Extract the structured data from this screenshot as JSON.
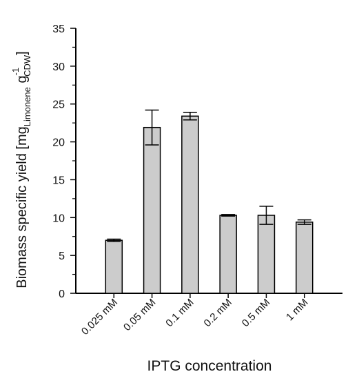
{
  "chart_data": {
    "type": "bar",
    "xlabel": "IPTG concentration",
    "ylabel": {
      "main": "Biomass specific yield [mg",
      "sub1": "Limonene",
      "mid": " g",
      "sup": "-1",
      "sub2": "CDW",
      "end": "]"
    },
    "categories": [
      "0.025 mM",
      "0.05 mM",
      "0.1 mM",
      "0.2 mM",
      "0.5 mM",
      "1 mM"
    ],
    "values": [
      7.0,
      21.9,
      23.4,
      10.3,
      10.3,
      9.4
    ],
    "errors": [
      0.15,
      2.3,
      0.5,
      0.1,
      1.2,
      0.3
    ],
    "ylim": [
      0,
      35
    ],
    "yticks": [
      0,
      5,
      10,
      15,
      20,
      25,
      30,
      35
    ],
    "ytick_labels": [
      "0",
      "5",
      "10",
      "15",
      "20",
      "25",
      "30",
      "35"
    ],
    "grid": false,
    "colors": {
      "bar_fill": "#cccccc",
      "bar_stroke": "#000000",
      "axis": "#000000"
    }
  }
}
